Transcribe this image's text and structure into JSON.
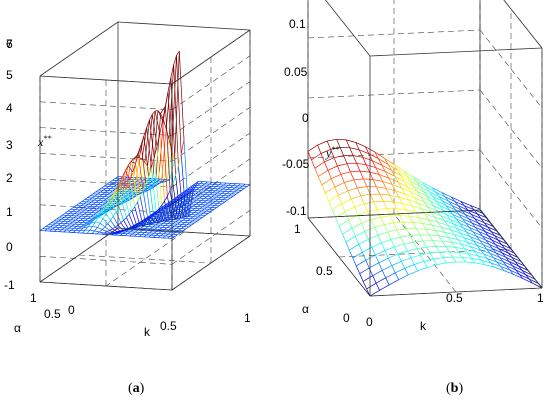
{
  "chart_data": [
    {
      "type": "surface",
      "panel": "a",
      "caption_open": "(",
      "caption_letter": "a",
      "caption_close": ")",
      "zlabel_base": "x",
      "zlabel_sup": "**",
      "xlabel": "k",
      "ylabel": "α",
      "z_ticks": [
        "-1",
        "0",
        "1",
        "2",
        "3",
        "4",
        "5",
        "6",
        "7"
      ],
      "x_ticks": [
        "0",
        "0.5",
        "1"
      ],
      "y_ticks": [
        "0",
        "0.5",
        "1"
      ],
      "zlim": [
        -1,
        7
      ],
      "xlim": [
        0,
        1
      ],
      "ylim": [
        0,
        1
      ],
      "grid": true,
      "description_of_surface": "",
      "plateau_value": 1.0,
      "peak_value": 6.0,
      "trough_value": -0.2
    },
    {
      "type": "surface",
      "panel": "b",
      "caption_open": "(",
      "caption_letter": "b",
      "caption_close": ")",
      "zlabel_base": "y",
      "zlabel_sup": "**",
      "xlabel": "k",
      "ylabel": "α",
      "z_ticks": [
        "-0.1",
        "-0.05",
        "0",
        "0.05",
        "0.1"
      ],
      "x_ticks": [
        "0",
        "0.5",
        "1"
      ],
      "y_ticks": [
        "0",
        "0.5",
        "1"
      ],
      "zlim": [
        -0.1,
        0.1
      ],
      "xlim": [
        0,
        1
      ],
      "ylim": [
        0,
        1
      ],
      "grid": true,
      "max_value": -0.04,
      "min_value": -0.1
    }
  ]
}
